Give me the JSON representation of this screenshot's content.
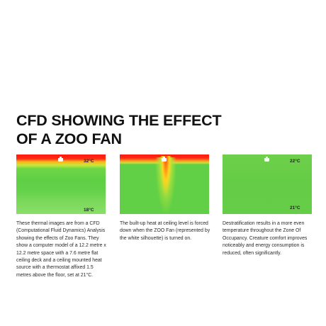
{
  "title": {
    "line1": "CFD SHOWING THE EFFECT",
    "line2": "OF A ZOO FAN"
  },
  "panels": [
    {
      "temp_top": "32°C",
      "temp_bottom": "18°C",
      "caption": "These thermal images are from a CFD (Computational Fluid Dynamics) Analysis showing the effects of Zoo Fans. They show a computer model of a 12.2 metre x 12.2 metre space with a 7.6 metre flat ceiling deck and a ceiling mounted heat source with a thermostat affixed 1.5 metres above the floor, set at 21°C."
    },
    {
      "temp_top": "",
      "temp_bottom": "",
      "caption": "The built-up heat at ceiling level is forced down when the ZOO Fan (represented by the white silhouette) is turned on."
    },
    {
      "temp_top": "22°C",
      "temp_bottom": "21°C",
      "caption": "Destratification results in a more even temperature throughout the Zone Of Occupancy. Creature comfort improves noticeably and energy consumption is reduced, often significantly."
    }
  ],
  "colors": {
    "hot": "#ff1a10",
    "warm": "#ffd21e",
    "neutral": "#62d046"
  },
  "icons": {
    "fan": "fan-silhouette-icon"
  }
}
